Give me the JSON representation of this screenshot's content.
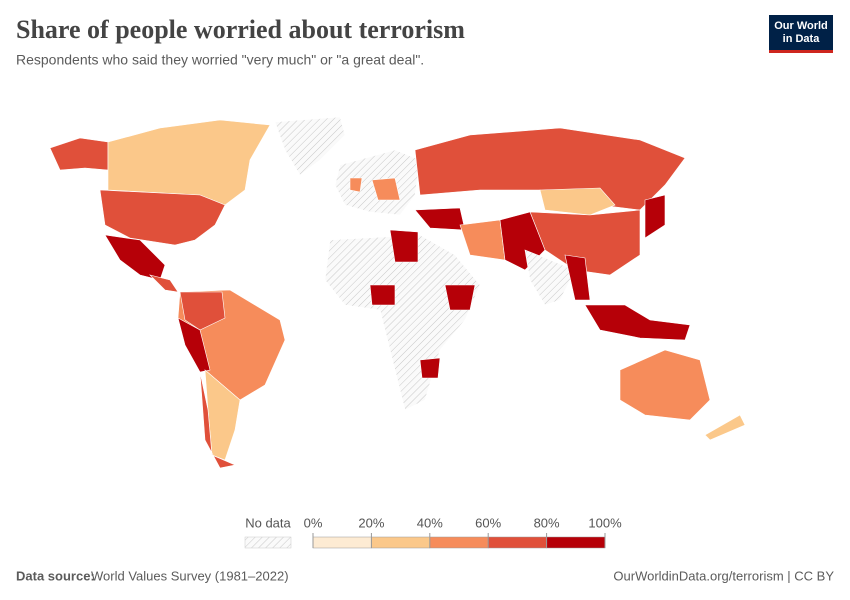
{
  "chart_data": {
    "type": "map",
    "title": "Share of people worried about terrorism",
    "subtitle": "Respondents who said they worried \"very much\" or \"a great deal\".",
    "legend": {
      "no_data_label": "No data",
      "ticks": [
        {
          "value": 0,
          "label": "0%"
        },
        {
          "value": 20,
          "label": "20%"
        },
        {
          "value": 40,
          "label": "40%"
        },
        {
          "value": 60,
          "label": "60%"
        },
        {
          "value": 80,
          "label": "80%"
        },
        {
          "value": 100,
          "label": "100%"
        }
      ],
      "colors": [
        "#fdebd3",
        "#fbc88a",
        "#f68c5b",
        "#e0503a",
        "#b60008"
      ]
    },
    "logo": {
      "line1": "Our World",
      "line2": "in Data"
    },
    "source_label": "Data source:",
    "source": "World Values Survey (1981–2022)",
    "url": "OurWorldinData.org/terrorism | CC BY"
  }
}
